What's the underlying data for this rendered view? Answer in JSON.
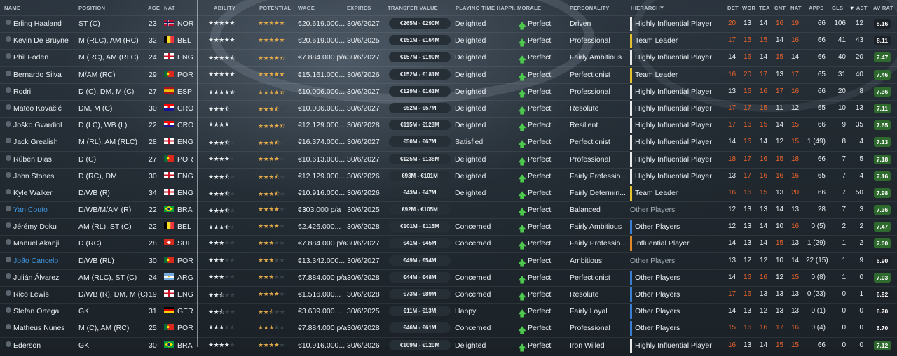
{
  "headers": {
    "name": "NAME",
    "position": "POSITION",
    "age": "AGE",
    "nat": "NAT",
    "ability": "ABILITY",
    "potential": "POTENTIAL",
    "wage": "WAGE",
    "expires": "EXPIRES",
    "transfer_value": "TRANSFER VALUE",
    "playing_time": "PLAYING TIME HAPPI...",
    "morale": "MORALE",
    "personality": "PERSONALITY",
    "hierarchy": "HIERARCHY",
    "det": "DET",
    "wor": "WOR",
    "tea": "TEA",
    "cnt": "CNT",
    "nat2": "NAT",
    "apps": "APPS",
    "gls": "GLS",
    "ast": "AST",
    "av_rat": "AV RAT"
  },
  "colors": {
    "leader": "#e6c230",
    "highly_influential": "#e8e8e8",
    "influential": "#e08a2a",
    "other": "#3a7fd0",
    "rating_green": "#2e6a2e",
    "rating_dark": "#1c2228"
  },
  "players": [
    {
      "name": "Erling Haaland",
      "link": false,
      "position": "ST (C)",
      "age": "23",
      "nat": "NOR",
      "ability": "5.0",
      "potential": "5.0",
      "wage": "€20.619.000...",
      "expires": "30/6/2027",
      "tv": "€265M - €290M",
      "pt": "Delighted",
      "morale": "Perfect",
      "personality": "Driven",
      "hierarchy": "Highly Influential Player",
      "htype": "highly_influential",
      "det": "20",
      "wor": "13",
      "tea": "14",
      "cnt": "16",
      "nat_stat": "19",
      "apps": "66",
      "gls": "106",
      "ast": "12",
      "avr": "8.16",
      "avr_green": false
    },
    {
      "name": "Kevin De Bruyne",
      "link": false,
      "position": "M (RLC), AM (RC)",
      "age": "32",
      "nat": "BEL",
      "ability": "5.0",
      "potential": "5.0",
      "wage": "€20.619.000...",
      "expires": "30/6/2025",
      "tv": "€151M - €164M",
      "pt": "Delighted",
      "morale": "Perfect",
      "personality": "Professional",
      "hierarchy": "Team Leader",
      "htype": "leader",
      "det": "17",
      "wor": "15",
      "tea": "15",
      "cnt": "14",
      "nat_stat": "16",
      "apps": "66",
      "gls": "41",
      "ast": "43",
      "avr": "8.11",
      "avr_green": false
    },
    {
      "name": "Phil Foden",
      "link": false,
      "position": "M (RC), AM (RLC)",
      "age": "24",
      "nat": "ENG",
      "ability": "4.5",
      "potential": "4.5",
      "wage": "€7.884.000 p/a",
      "expires": "30/6/2027",
      "tv": "€157M - €190M",
      "pt": "Delighted",
      "morale": "Perfect",
      "personality": "Fairly Ambitious",
      "hierarchy": "Highly Influential Player",
      "htype": "highly_influential",
      "det": "14",
      "wor": "16",
      "tea": "14",
      "cnt": "15",
      "nat_stat": "14",
      "apps": "66",
      "gls": "40",
      "ast": "20",
      "avr": "7.47",
      "avr_green": true
    },
    {
      "name": "Bernardo Silva",
      "link": false,
      "position": "M/AM (RC)",
      "age": "29",
      "nat": "POR",
      "ability": "5.0",
      "potential": "5.0",
      "wage": "€15.161.000...",
      "expires": "30/6/2026",
      "tv": "€152M - €181M",
      "pt": "Delighted",
      "morale": "Perfect",
      "personality": "Perfectionist",
      "hierarchy": "Team Leader",
      "htype": "leader",
      "det": "16",
      "wor": "20",
      "tea": "17",
      "cnt": "13",
      "nat_stat": "17",
      "apps": "65",
      "gls": "31",
      "ast": "40",
      "avr": "7.46",
      "avr_green": true
    },
    {
      "name": "Rodri",
      "link": false,
      "position": "D (C), DM, M (C)",
      "age": "27",
      "nat": "ESP",
      "ability": "4.5",
      "potential": "4.5",
      "wage": "€10.006.000...",
      "expires": "30/6/2027",
      "tv": "€129M - €161M",
      "pt": "Delighted",
      "morale": "Perfect",
      "personality": "Professional",
      "hierarchy": "Highly Influential Player",
      "htype": "highly_influential",
      "det": "13",
      "wor": "16",
      "tea": "16",
      "cnt": "17",
      "nat_stat": "16",
      "apps": "66",
      "gls": "20",
      "ast": "8",
      "avr": "7.36",
      "avr_green": true
    },
    {
      "name": "Mateo Kovačić",
      "link": false,
      "position": "DM, M (C)",
      "age": "30",
      "nat": "CRO",
      "ability": "3.5",
      "potential": "3.5",
      "wage": "€10.006.000...",
      "expires": "30/6/2027",
      "tv": "€52M - €57M",
      "pt": "Delighted",
      "morale": "Perfect",
      "personality": "Resolute",
      "hierarchy": "Highly Influential Player",
      "htype": "highly_influential",
      "det": "17",
      "wor": "17",
      "tea": "15",
      "cnt": "11",
      "nat_stat": "12",
      "apps": "65",
      "gls": "10",
      "ast": "13",
      "avr": "7.11",
      "avr_green": true
    },
    {
      "name": "Joško Gvardiol",
      "link": false,
      "position": "D (LC), WB (L)",
      "age": "22",
      "nat": "CRO",
      "ability": "4.0",
      "potential": "4.5",
      "wage": "€12.129.000...",
      "expires": "30/6/2028",
      "tv": "€115M - €128M",
      "pt": "Delighted",
      "morale": "Perfect",
      "personality": "Resilient",
      "hierarchy": "Highly Influential Player",
      "htype": "highly_influential",
      "det": "17",
      "wor": "16",
      "tea": "15",
      "cnt": "14",
      "nat_stat": "15",
      "apps": "66",
      "gls": "9",
      "ast": "35",
      "avr": "7.65",
      "avr_green": true
    },
    {
      "name": "Jack Grealish",
      "link": false,
      "position": "M (RL), AM (RLC)",
      "age": "28",
      "nat": "ENG",
      "ability": "3.5",
      "potential": "3.5",
      "wage": "€16.374.000...",
      "expires": "30/6/2027",
      "tv": "€50M - €67M",
      "pt": "Satisfied",
      "morale": "Perfect",
      "personality": "Perfectionist",
      "hierarchy": "Highly Influential Player",
      "htype": "highly_influential",
      "det": "14",
      "wor": "16",
      "tea": "14",
      "cnt": "12",
      "nat_stat": "15",
      "apps": "1 (49)",
      "gls": "8",
      "ast": "4",
      "avr": "7.13",
      "avr_green": true
    },
    {
      "name": "Rúben Dias",
      "link": false,
      "position": "D (C)",
      "age": "27",
      "nat": "POR",
      "ability": "4.0",
      "potential": "4.0",
      "wage": "€10.613.000...",
      "expires": "30/6/2027",
      "tv": "€125M - €138M",
      "pt": "Delighted",
      "morale": "Perfect",
      "personality": "Professional",
      "hierarchy": "Highly Influential Player",
      "htype": "highly_influential",
      "det": "18",
      "wor": "17",
      "tea": "16",
      "cnt": "15",
      "nat_stat": "18",
      "apps": "66",
      "gls": "7",
      "ast": "5",
      "avr": "7.18",
      "avr_green": true
    },
    {
      "name": "John Stones",
      "link": false,
      "position": "D (RC), DM",
      "age": "30",
      "nat": "ENG",
      "ability": "3.5",
      "potential": "3.5",
      "wage": "€12.129.000...",
      "expires": "30/6/2026",
      "tv": "€93M - €101M",
      "pt": "Delighted",
      "morale": "Perfect",
      "personality": "Fairly Professio...",
      "hierarchy": "Highly Influential Player",
      "htype": "highly_influential",
      "det": "13",
      "wor": "17",
      "tea": "16",
      "cnt": "16",
      "nat_stat": "16",
      "apps": "65",
      "gls": "7",
      "ast": "4",
      "avr": "7.16",
      "avr_green": true
    },
    {
      "name": "Kyle Walker",
      "link": false,
      "position": "D/WB (R)",
      "age": "34",
      "nat": "ENG",
      "ability": "3.5",
      "potential": "3.5",
      "wage": "€10.916.000...",
      "expires": "30/6/2026",
      "tv": "€43M - €47M",
      "pt": "Delighted",
      "morale": "Perfect",
      "personality": "Fairly Determin...",
      "hierarchy": "Team Leader",
      "htype": "leader",
      "det": "16",
      "wor": "16",
      "tea": "15",
      "cnt": "13",
      "nat_stat": "20",
      "apps": "66",
      "gls": "7",
      "ast": "50",
      "avr": "7.98",
      "avr_green": true
    },
    {
      "name": "Yan Couto",
      "link": true,
      "position": "D/WB/M/AM (R)",
      "age": "22",
      "nat": "BRA",
      "ability": "3.5",
      "potential": "4.0",
      "wage": "€303.000 p/a",
      "expires": "30/6/2025",
      "tv": "€92M - €105M",
      "pt": "",
      "morale": "Perfect",
      "personality": "Balanced",
      "hierarchy": "Other Players",
      "htype": "none",
      "det": "12",
      "wor": "13",
      "tea": "13",
      "cnt": "14",
      "nat_stat": "13",
      "apps": "28",
      "gls": "7",
      "ast": "3",
      "avr": "7.36",
      "avr_green": true
    },
    {
      "name": "Jérémy Doku",
      "link": false,
      "position": "AM (RL), ST (C)",
      "age": "22",
      "nat": "BEL",
      "ability": "3.5",
      "potential": "4.0",
      "wage": "€2.426.000...",
      "expires": "30/6/2028",
      "tv": "€101M - €115M",
      "pt": "Concerned",
      "morale": "Perfect",
      "personality": "Fairly Ambitious",
      "hierarchy": "Other Players",
      "htype": "other",
      "det": "12",
      "wor": "13",
      "tea": "14",
      "cnt": "10",
      "nat_stat": "16",
      "apps": "0 (5)",
      "gls": "2",
      "ast": "2",
      "avr": "7.47",
      "avr_green": true
    },
    {
      "name": "Manuel Akanji",
      "link": false,
      "position": "D (RC)",
      "age": "28",
      "nat": "SUI",
      "ability": "3.0",
      "potential": "3.0",
      "wage": "€7.884.000 p/a",
      "expires": "30/6/2027",
      "tv": "€41M - €45M",
      "pt": "Concerned",
      "morale": "Perfect",
      "personality": "Fairly Professio...",
      "hierarchy": "Influential Player",
      "htype": "influential",
      "det": "14",
      "wor": "13",
      "tea": "14",
      "cnt": "15",
      "nat_stat": "13",
      "apps": "1 (29)",
      "gls": "1",
      "ast": "2",
      "avr": "7.00",
      "avr_green": true
    },
    {
      "name": "João Cancelo",
      "link": true,
      "position": "D/WB (RL)",
      "age": "30",
      "nat": "POR",
      "ability": "3.0",
      "potential": "3.0",
      "wage": "€13.342.000...",
      "expires": "30/6/2027",
      "tv": "€49M - €54M",
      "pt": "",
      "morale": "Perfect",
      "personality": "Ambitious",
      "hierarchy": "Other Players",
      "htype": "none",
      "det": "13",
      "wor": "12",
      "tea": "12",
      "cnt": "10",
      "nat_stat": "14",
      "apps": "22 (15)",
      "gls": "1",
      "ast": "9",
      "avr": "6.90",
      "avr_green": false
    },
    {
      "name": "Julián Álvarez",
      "link": false,
      "position": "AM (RLC), ST (C)",
      "age": "24",
      "nat": "ARG",
      "ability": "3.0",
      "potential": "3.0",
      "wage": "€7.884.000 p/a",
      "expires": "30/6/2028",
      "tv": "€44M - €48M",
      "pt": "Concerned",
      "morale": "Perfect",
      "personality": "Perfectionist",
      "hierarchy": "Other Players",
      "htype": "other",
      "det": "14",
      "wor": "16",
      "tea": "16",
      "cnt": "12",
      "nat_stat": "15",
      "apps": "0 (8)",
      "gls": "1",
      "ast": "0",
      "avr": "7.03",
      "avr_green": true
    },
    {
      "name": "Rico Lewis",
      "link": false,
      "position": "D/WB (R), DM, M (C)",
      "age": "19",
      "nat": "ENG",
      "ability": "2.5",
      "potential": "4.0",
      "wage": "€1.516.000...",
      "expires": "30/6/2028",
      "tv": "€73M - €89M",
      "pt": "Concerned",
      "morale": "Perfect",
      "personality": "Resolute",
      "hierarchy": "Other Players",
      "htype": "other",
      "det": "17",
      "wor": "16",
      "tea": "13",
      "cnt": "13",
      "nat_stat": "13",
      "apps": "0 (23)",
      "gls": "0",
      "ast": "1",
      "avr": "6.92",
      "avr_green": false
    },
    {
      "name": "Stefan Ortega",
      "link": false,
      "position": "GK",
      "age": "31",
      "nat": "GER",
      "ability": "2.5",
      "potential": "2.5",
      "wage": "€3.639.000...",
      "expires": "30/6/2025",
      "tv": "€11M - €13M",
      "pt": "Happy",
      "morale": "Perfect",
      "personality": "Fairly Loyal",
      "hierarchy": "Other Players",
      "htype": "other",
      "det": "14",
      "wor": "13",
      "tea": "12",
      "cnt": "13",
      "nat_stat": "13",
      "apps": "0 (1)",
      "gls": "0",
      "ast": "0",
      "avr": "6.70",
      "avr_green": false
    },
    {
      "name": "Matheus Nunes",
      "link": false,
      "position": "M (C), AM (RC)",
      "age": "25",
      "nat": "POR",
      "ability": "3.0",
      "potential": "3.0",
      "wage": "€7.884.000 p/a",
      "expires": "30/6/2028",
      "tv": "€46M - €61M",
      "pt": "Concerned",
      "morale": "Perfect",
      "personality": "Professional",
      "hierarchy": "Other Players",
      "htype": "other",
      "det": "15",
      "wor": "16",
      "tea": "16",
      "cnt": "17",
      "nat_stat": "16",
      "apps": "0 (4)",
      "gls": "0",
      "ast": "0",
      "avr": "6.70",
      "avr_green": false
    },
    {
      "name": "Ederson",
      "link": false,
      "position": "GK",
      "age": "30",
      "nat": "BRA",
      "ability": "4.0",
      "potential": "4.0",
      "wage": "€10.916.000...",
      "expires": "30/6/2026",
      "tv": "€109M - €120M",
      "pt": "Delighted",
      "morale": "Perfect",
      "personality": "Iron Willed",
      "hierarchy": "Highly Influential Player",
      "htype": "highly_influential",
      "det": "16",
      "wor": "13",
      "tea": "14",
      "cnt": "15",
      "nat_stat": "15",
      "apps": "66",
      "gls": "0",
      "ast": "0",
      "avr": "7.12",
      "avr_green": true
    }
  ]
}
